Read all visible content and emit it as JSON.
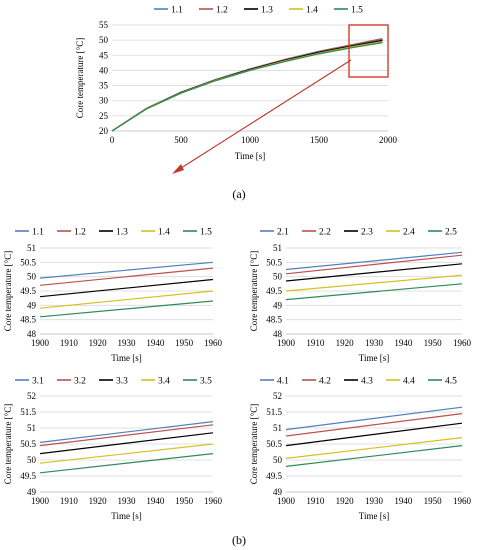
{
  "colors": {
    "s1": "#4f81bd",
    "s2": "#c0504d",
    "s3": "#000000",
    "s4": "#d4c11f",
    "s5": "#2e8b57",
    "highlight": "#d93a2b",
    "arrow": "#c0392b"
  },
  "panel_labels": [
    "(a)",
    "(b)"
  ],
  "chart_data": [
    {
      "type": "line",
      "legend": [
        "1.1",
        "1.2",
        "1.3",
        "1.4",
        "1.5"
      ],
      "xlabel": "Time [s]",
      "ylabel": "Core temperature [°C]",
      "xlim": [
        0,
        2000
      ],
      "ylim": [
        20,
        55
      ],
      "xticks": [
        "0",
        "500",
        "1000",
        "1500",
        "2000"
      ],
      "yticks": [
        "20",
        "25",
        "30",
        "35",
        "40",
        "45",
        "50",
        "55"
      ],
      "grid": "horizontal",
      "legend_position": "top",
      "series": [
        {
          "name": "1.1",
          "x": [
            0,
            250,
            500,
            750,
            1000,
            1250,
            1500,
            1750,
            1960
          ],
          "y": [
            20,
            27.5,
            32.8,
            37.0,
            40.5,
            43.6,
            46.3,
            48.6,
            50.5
          ]
        },
        {
          "name": "1.2",
          "x": [
            0,
            250,
            500,
            750,
            1000,
            1250,
            1500,
            1750,
            1960
          ],
          "y": [
            20,
            27.5,
            32.8,
            36.9,
            40.4,
            43.5,
            46.2,
            48.5,
            50.3
          ]
        },
        {
          "name": "1.3",
          "x": [
            0,
            250,
            500,
            750,
            1000,
            1250,
            1500,
            1750,
            1960
          ],
          "y": [
            20,
            27.4,
            32.7,
            36.8,
            40.3,
            43.3,
            46.0,
            48.2,
            49.9
          ]
        },
        {
          "name": "1.4",
          "x": [
            0,
            250,
            500,
            750,
            1000,
            1250,
            1500,
            1750,
            1960
          ],
          "y": [
            20,
            27.4,
            32.6,
            36.7,
            40.1,
            43.1,
            45.7,
            47.9,
            49.5
          ]
        },
        {
          "name": "1.5",
          "x": [
            0,
            250,
            500,
            750,
            1000,
            1250,
            1500,
            1750,
            1960
          ],
          "y": [
            20,
            27.3,
            32.5,
            36.6,
            40.0,
            42.9,
            45.5,
            47.6,
            49.2
          ]
        }
      ]
    },
    {
      "type": "line",
      "legend": [
        "1.1",
        "1.2",
        "1.3",
        "1.4",
        "1.5"
      ],
      "xlabel": "Time [s]",
      "ylabel": "Core temperature [°C]",
      "xlim": [
        1900,
        1960
      ],
      "ylim": [
        48,
        51
      ],
      "xticks": [
        "1900",
        "1910",
        "1920",
        "1930",
        "1940",
        "1950",
        "1960"
      ],
      "yticks": [
        "48",
        "48.5",
        "49",
        "49.5",
        "50",
        "50.5",
        "51"
      ],
      "grid": "horizontal",
      "legend_position": "top",
      "series": [
        {
          "name": "1.1",
          "x": [
            1900,
            1960
          ],
          "y": [
            49.95,
            50.5
          ]
        },
        {
          "name": "1.2",
          "x": [
            1900,
            1960
          ],
          "y": [
            49.7,
            50.3
          ]
        },
        {
          "name": "1.3",
          "x": [
            1900,
            1960
          ],
          "y": [
            49.3,
            49.9
          ]
        },
        {
          "name": "1.4",
          "x": [
            1900,
            1960
          ],
          "y": [
            48.9,
            49.5
          ]
        },
        {
          "name": "1.5",
          "x": [
            1900,
            1960
          ],
          "y": [
            48.6,
            49.15
          ]
        }
      ]
    },
    {
      "type": "line",
      "legend": [
        "2.1",
        "2.2",
        "2.3",
        "2.4",
        "2.5"
      ],
      "xlabel": "Time [s]",
      "ylabel": "Core temperature [°C]",
      "xlim": [
        1900,
        1960
      ],
      "ylim": [
        48,
        51
      ],
      "xticks": [
        "1900",
        "1910",
        "1920",
        "1930",
        "1940",
        "1950",
        "1960"
      ],
      "yticks": [
        "48",
        "48.5",
        "49",
        "49.5",
        "50",
        "50.5",
        "51"
      ],
      "grid": "horizontal",
      "legend_position": "top",
      "series": [
        {
          "name": "2.1",
          "x": [
            1900,
            1960
          ],
          "y": [
            50.25,
            50.85
          ]
        },
        {
          "name": "2.2",
          "x": [
            1900,
            1960
          ],
          "y": [
            50.1,
            50.75
          ]
        },
        {
          "name": "2.3",
          "x": [
            1900,
            1960
          ],
          "y": [
            49.85,
            50.45
          ]
        },
        {
          "name": "2.4",
          "x": [
            1900,
            1960
          ],
          "y": [
            49.5,
            50.05
          ]
        },
        {
          "name": "2.5",
          "x": [
            1900,
            1960
          ],
          "y": [
            49.2,
            49.75
          ]
        }
      ]
    },
    {
      "type": "line",
      "legend": [
        "3.1",
        "3.2",
        "3.3",
        "3.4",
        "3.5"
      ],
      "xlabel": "Time [s]",
      "ylabel": "Core temperature [°C]",
      "xlim": [
        1900,
        1960
      ],
      "ylim": [
        49,
        52
      ],
      "xticks": [
        "1900",
        "1910",
        "1920",
        "1930",
        "1940",
        "1950",
        "1960"
      ],
      "yticks": [
        "49",
        "49.5",
        "50",
        "50.5",
        "51",
        "51.5",
        "52"
      ],
      "grid": "horizontal",
      "legend_position": "top",
      "series": [
        {
          "name": "3.1",
          "x": [
            1900,
            1960
          ],
          "y": [
            50.55,
            51.2
          ]
        },
        {
          "name": "3.2",
          "x": [
            1900,
            1960
          ],
          "y": [
            50.45,
            51.1
          ]
        },
        {
          "name": "3.3",
          "x": [
            1900,
            1960
          ],
          "y": [
            50.2,
            50.85
          ]
        },
        {
          "name": "3.4",
          "x": [
            1900,
            1960
          ],
          "y": [
            49.9,
            50.5
          ]
        },
        {
          "name": "3.5",
          "x": [
            1900,
            1960
          ],
          "y": [
            49.6,
            50.2
          ]
        }
      ]
    },
    {
      "type": "line",
      "legend": [
        "4.1",
        "4.2",
        "4.3",
        "4.4",
        "4.5"
      ],
      "xlabel": "Time [s]",
      "ylabel": "Core temperature [°C]",
      "xlim": [
        1900,
        1960
      ],
      "ylim": [
        49,
        52
      ],
      "xticks": [
        "1900",
        "1910",
        "1920",
        "1930",
        "1940",
        "1950",
        "1960"
      ],
      "yticks": [
        "49",
        "49.5",
        "50",
        "50.5",
        "51",
        "51.5",
        "52"
      ],
      "grid": "horizontal",
      "legend_position": "top",
      "series": [
        {
          "name": "4.1",
          "x": [
            1900,
            1960
          ],
          "y": [
            50.95,
            51.65
          ]
        },
        {
          "name": "4.2",
          "x": [
            1900,
            1960
          ],
          "y": [
            50.75,
            51.45
          ]
        },
        {
          "name": "4.3",
          "x": [
            1900,
            1960
          ],
          "y": [
            50.45,
            51.15
          ]
        },
        {
          "name": "4.4",
          "x": [
            1900,
            1960
          ],
          "y": [
            50.05,
            50.7
          ]
        },
        {
          "name": "4.5",
          "x": [
            1900,
            1960
          ],
          "y": [
            49.8,
            50.45
          ]
        }
      ]
    }
  ]
}
